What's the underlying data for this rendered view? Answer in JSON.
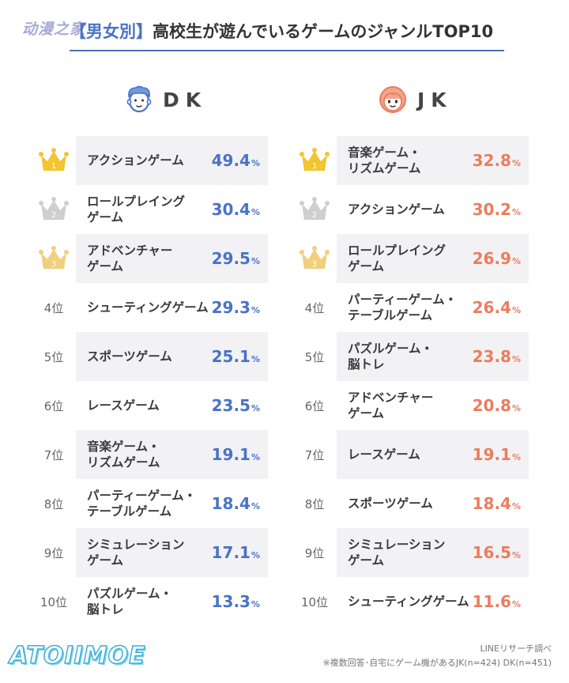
{
  "watermark_top": "动漫之家",
  "title": {
    "bracket_open": "【",
    "tag": "男女別",
    "bracket_close": "】",
    "text": "高校生が遊んでいるゲームのジャンルTOP10"
  },
  "colors": {
    "dk_accent": "#4a73c6",
    "jk_accent": "#ea7d5f",
    "gold": "#f2c531",
    "silver": "#cfcfcf",
    "bronze": "#f0cf7d",
    "row_alt": "#f2f2f4"
  },
  "columns": {
    "dk": {
      "label": "DK",
      "icon": "boy-face-icon"
    },
    "jk": {
      "label": "JK",
      "icon": "girl-face-icon"
    }
  },
  "rank_labels": [
    "1",
    "2",
    "3",
    "4位",
    "5位",
    "6位",
    "7位",
    "8位",
    "9位",
    "10位"
  ],
  "unit": "%",
  "chart_data": [
    {
      "type": "table",
      "series": "DK",
      "categories": [
        "アクションゲーム",
        "ロールプレイング\nゲーム",
        "アドベンチャー\nゲーム",
        "シューティングゲーム",
        "スポーツゲーム",
        "レースゲーム",
        "音楽ゲーム・\nリズムゲーム",
        "パーティーゲーム・\nテーブルゲーム",
        "シミュレーション\nゲーム",
        "パズルゲーム・\n脳トレ"
      ],
      "values": [
        49.4,
        30.4,
        29.5,
        29.3,
        25.1,
        23.5,
        19.1,
        18.4,
        17.1,
        13.3
      ]
    },
    {
      "type": "table",
      "series": "JK",
      "categories": [
        "音楽ゲーム・\nリズムゲーム",
        "アクションゲーム",
        "ロールプレイング\nゲーム",
        "パーティーゲーム・\nテーブルゲーム",
        "パズルゲーム・\n脳トレ",
        "アドベンチャー\nゲーム",
        "レースゲーム",
        "スポーツゲーム",
        "シミュレーション\nゲーム",
        "シューティングゲーム"
      ],
      "values": [
        32.8,
        30.2,
        26.9,
        26.4,
        23.8,
        20.8,
        19.1,
        18.4,
        16.5,
        11.6
      ]
    }
  ],
  "source": {
    "line1": "LINEリサーチ調べ",
    "line2": "※複数回答･自宅にゲーム機があるJK(n=424) DK(n=451)"
  },
  "logo_bottom": "ATOIIMOE"
}
